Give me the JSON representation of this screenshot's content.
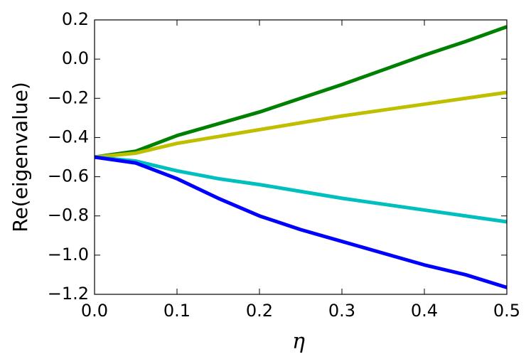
{
  "chart_data": {
    "type": "line",
    "x_label": "η",
    "y_label": "Re(eigenvalue)",
    "x": [
      0,
      0.05,
      0.1,
      0.15,
      0.2,
      0.25,
      0.3,
      0.35,
      0.4,
      0.45,
      0.5
    ],
    "series": [
      {
        "color": "#008000",
        "values": [
          -0.5,
          -0.47,
          -0.39,
          -0.33,
          -0.27,
          -0.2,
          -0.13,
          -0.055,
          0.02,
          0.09,
          0.165
        ]
      },
      {
        "color": "#bfbf00",
        "values": [
          -0.5,
          -0.48,
          -0.43,
          -0.395,
          -0.36,
          -0.325,
          -0.29,
          -0.26,
          -0.23,
          -0.2,
          -0.17
        ]
      },
      {
        "color": "#00bfbf",
        "values": [
          -0.5,
          -0.52,
          -0.57,
          -0.61,
          -0.64,
          -0.675,
          -0.71,
          -0.74,
          -0.77,
          -0.8,
          -0.83
        ]
      },
      {
        "color": "#0000ff",
        "values": [
          -0.5,
          -0.53,
          -0.61,
          -0.71,
          -0.8,
          -0.87,
          -0.93,
          -0.99,
          -1.05,
          -1.1,
          -1.165
        ]
      }
    ],
    "xlim": [
      0,
      0.5
    ],
    "xticks": [
      {
        "value": 0,
        "label": "0.0"
      },
      0.1,
      0.2,
      0.3,
      0.4,
      0.5
    ],
    "ylim": [
      -1.2,
      0.2
    ],
    "yticks": [
      {
        "value": -1.2,
        "label": "−1.2"
      },
      {
        "value": -1.0,
        "label": "−1.0"
      },
      {
        "value": -0.8,
        "label": "−0.8"
      },
      {
        "value": -0.6,
        "label": "−0.6"
      },
      {
        "value": -0.4,
        "label": "−0.4"
      },
      {
        "value": -0.2,
        "label": "−0.2"
      },
      {
        "value": 0,
        "label": "0.0"
      },
      0.2
    ],
    "grid": false
  }
}
